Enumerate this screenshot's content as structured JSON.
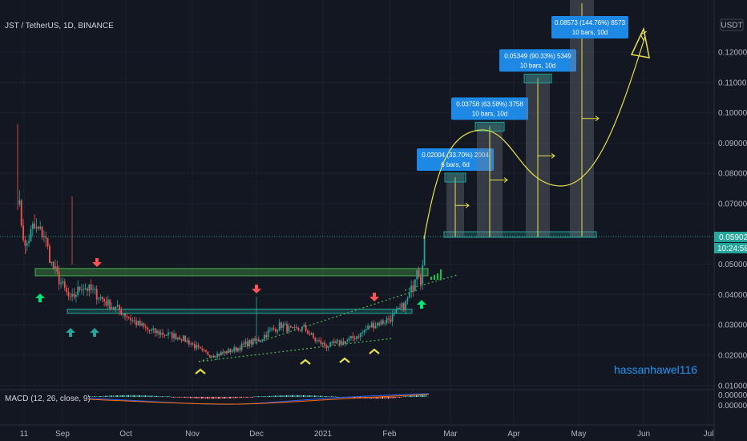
{
  "header": {
    "symbol": "JST / TetherUS, 1D, BINANCE",
    "currency": "USDT"
  },
  "watermark": "hassanhawel116",
  "macd": {
    "label": "MACD (12, 26, close, 9)",
    "ticks": [
      "0.000000",
      "0.000000"
    ]
  },
  "price_tag": {
    "value": "0.05902",
    "countdown": "10:24:58",
    "color": "#26a69a"
  },
  "colors": {
    "up": "#26a69a",
    "down": "#ef5350",
    "arrow_up": "#00e676",
    "arrow_down": "#ff5252",
    "chevron": "#e6e14a",
    "zone_green": "#4caf50",
    "zone_teal": "#26a69a",
    "box_blue": "#1e88e5",
    "path_yellow": "#e6e14a"
  },
  "chart_data": {
    "type": "candlestick",
    "x_ticks": [
      "11",
      "Sep",
      "Oct",
      "Nov",
      "Dec",
      "2021",
      "Feb",
      "Mar",
      "Apr",
      "May",
      "Jun",
      "Jul"
    ],
    "y_ticks": [
      "0.12000",
      "0.11000",
      "0.10000",
      "0.09000",
      "0.08000",
      "0.07000",
      "0.05000",
      "0.04000",
      "0.03000",
      "0.02000",
      "0.01000"
    ],
    "y_range": [
      0.0075,
      0.1285
    ],
    "price_path": [
      [
        0,
        0.073
      ],
      [
        4,
        0.055
      ],
      [
        8,
        0.062
      ],
      [
        14,
        0.06
      ],
      [
        18,
        0.05
      ],
      [
        22,
        0.045
      ],
      [
        28,
        0.038
      ],
      [
        34,
        0.043
      ],
      [
        40,
        0.041
      ],
      [
        48,
        0.037
      ],
      [
        56,
        0.034
      ],
      [
        62,
        0.031
      ],
      [
        70,
        0.028
      ],
      [
        78,
        0.027
      ],
      [
        86,
        0.026
      ],
      [
        92,
        0.024
      ],
      [
        98,
        0.021
      ],
      [
        104,
        0.02
      ],
      [
        110,
        0.021
      ],
      [
        116,
        0.022
      ],
      [
        122,
        0.024
      ],
      [
        128,
        0.025
      ],
      [
        134,
        0.028
      ],
      [
        140,
        0.03
      ],
      [
        146,
        0.028
      ],
      [
        152,
        0.029
      ],
      [
        158,
        0.025
      ],
      [
        164,
        0.023
      ],
      [
        170,
        0.024
      ],
      [
        176,
        0.025
      ],
      [
        182,
        0.027
      ],
      [
        188,
        0.03
      ],
      [
        194,
        0.031
      ],
      [
        200,
        0.033
      ],
      [
        206,
        0.037
      ],
      [
        210,
        0.043
      ],
      [
        212,
        0.05
      ],
      [
        214,
        0.045
      ],
      [
        216,
        0.059
      ]
    ],
    "levels": [
      {
        "name": "resistance",
        "low": 0.0462,
        "high": 0.0486,
        "color": "#4caf50"
      },
      {
        "name": "support",
        "low": 0.0338,
        "high": 0.0352,
        "color": "#26a69a"
      }
    ],
    "targets": [
      {
        "label": "0.02004 (33.70%) 2004",
        "bars": "6 bars, 6d",
        "target": 0.0798
      },
      {
        "label": "0.03758 (63.58%) 3758",
        "bars": "10 bars, 10d",
        "target": 0.0966
      },
      {
        "label": "0.05349 (90.33%) 5349",
        "bars": "10 bars, 10d",
        "target": 0.1125
      },
      {
        "label": "0.08573 (144.76%) 8573",
        "bars": "10 bars, 10d",
        "target": 0.1448
      }
    ]
  }
}
